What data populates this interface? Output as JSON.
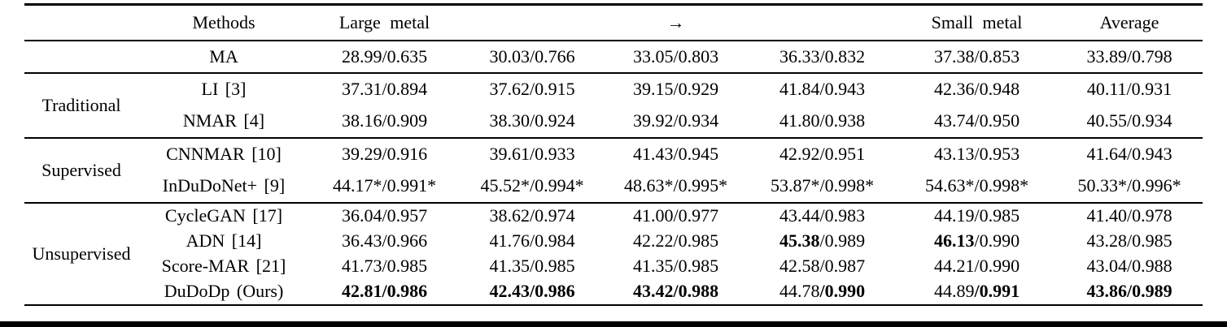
{
  "colors": {
    "text": "#000000",
    "background": "#ffffff",
    "rules": "#000000"
  },
  "table": {
    "header": {
      "group_label": "",
      "methods_label": "Methods",
      "columns": [
        "Large metal",
        "",
        "→",
        "",
        "Small metal",
        "Average"
      ]
    },
    "groups": [
      {
        "label": "",
        "rows": [
          {
            "method": "MA",
            "cells": [
              {
                "psnr": "28.99",
                "ssim": "0.635",
                "psnr_bold": false,
                "ssim_bold": false
              },
              {
                "psnr": "30.03",
                "ssim": "0.766",
                "psnr_bold": false,
                "ssim_bold": false
              },
              {
                "psnr": "33.05",
                "ssim": "0.803",
                "psnr_bold": false,
                "ssim_bold": false
              },
              {
                "psnr": "36.33",
                "ssim": "0.832",
                "psnr_bold": false,
                "ssim_bold": false
              },
              {
                "psnr": "37.38",
                "ssim": "0.853",
                "psnr_bold": false,
                "ssim_bold": false
              },
              {
                "psnr": "33.89",
                "ssim": "0.798",
                "psnr_bold": false,
                "ssim_bold": false
              }
            ]
          }
        ]
      },
      {
        "label": "Traditional",
        "rows": [
          {
            "method": "LI [3]",
            "cells": [
              {
                "psnr": "37.31",
                "ssim": "0.894",
                "psnr_bold": false,
                "ssim_bold": false
              },
              {
                "psnr": "37.62",
                "ssim": "0.915",
                "psnr_bold": false,
                "ssim_bold": false
              },
              {
                "psnr": "39.15",
                "ssim": "0.929",
                "psnr_bold": false,
                "ssim_bold": false
              },
              {
                "psnr": "41.84",
                "ssim": "0.943",
                "psnr_bold": false,
                "ssim_bold": false
              },
              {
                "psnr": "42.36",
                "ssim": "0.948",
                "psnr_bold": false,
                "ssim_bold": false
              },
              {
                "psnr": "40.11",
                "ssim": "0.931",
                "psnr_bold": false,
                "ssim_bold": false
              }
            ]
          },
          {
            "method": "NMAR [4]",
            "cells": [
              {
                "psnr": "38.16",
                "ssim": "0.909",
                "psnr_bold": false,
                "ssim_bold": false
              },
              {
                "psnr": "38.30",
                "ssim": "0.924",
                "psnr_bold": false,
                "ssim_bold": false
              },
              {
                "psnr": "39.92",
                "ssim": "0.934",
                "psnr_bold": false,
                "ssim_bold": false
              },
              {
                "psnr": "41.80",
                "ssim": "0.938",
                "psnr_bold": false,
                "ssim_bold": false
              },
              {
                "psnr": "43.74",
                "ssim": "0.950",
                "psnr_bold": false,
                "ssim_bold": false
              },
              {
                "psnr": "40.55",
                "ssim": "0.934",
                "psnr_bold": false,
                "ssim_bold": false
              }
            ]
          }
        ]
      },
      {
        "label": "Supervised",
        "rows": [
          {
            "method": "CNNMAR [10]",
            "cells": [
              {
                "psnr": "39.29",
                "ssim": "0.916",
                "psnr_bold": false,
                "ssim_bold": false
              },
              {
                "psnr": "39.61",
                "ssim": "0.933",
                "psnr_bold": false,
                "ssim_bold": false
              },
              {
                "psnr": "41.43",
                "ssim": "0.945",
                "psnr_bold": false,
                "ssim_bold": false
              },
              {
                "psnr": "42.92",
                "ssim": "0.951",
                "psnr_bold": false,
                "ssim_bold": false
              },
              {
                "psnr": "43.13",
                "ssim": "0.953",
                "psnr_bold": false,
                "ssim_bold": false
              },
              {
                "psnr": "41.64",
                "ssim": "0.943",
                "psnr_bold": false,
                "ssim_bold": false
              }
            ]
          },
          {
            "method": "InDuDoNet+ [9]",
            "cells": [
              {
                "psnr": "44.17*",
                "ssim": "0.991*",
                "psnr_bold": false,
                "ssim_bold": false
              },
              {
                "psnr": "45.52*",
                "ssim": "0.994*",
                "psnr_bold": false,
                "ssim_bold": false
              },
              {
                "psnr": "48.63*",
                "ssim": "0.995*",
                "psnr_bold": false,
                "ssim_bold": false
              },
              {
                "psnr": "53.87*",
                "ssim": "0.998*",
                "psnr_bold": false,
                "ssim_bold": false
              },
              {
                "psnr": "54.63*",
                "ssim": "0.998*",
                "psnr_bold": false,
                "ssim_bold": false
              },
              {
                "psnr": "50.33*",
                "ssim": "0.996*",
                "psnr_bold": false,
                "ssim_bold": false
              }
            ]
          }
        ]
      },
      {
        "label": "Unsupervised",
        "rows": [
          {
            "method": "CycleGAN [17]",
            "cells": [
              {
                "psnr": "36.04",
                "ssim": "0.957",
                "psnr_bold": false,
                "ssim_bold": false
              },
              {
                "psnr": "38.62",
                "ssim": "0.974",
                "psnr_bold": false,
                "ssim_bold": false
              },
              {
                "psnr": "41.00",
                "ssim": "0.977",
                "psnr_bold": false,
                "ssim_bold": false
              },
              {
                "psnr": "43.44",
                "ssim": "0.983",
                "psnr_bold": false,
                "ssim_bold": false
              },
              {
                "psnr": "44.19",
                "ssim": "0.985",
                "psnr_bold": false,
                "ssim_bold": false
              },
              {
                "psnr": "41.40",
                "ssim": "0.978",
                "psnr_bold": false,
                "ssim_bold": false
              }
            ]
          },
          {
            "method": "ADN [14]",
            "cells": [
              {
                "psnr": "36.43",
                "ssim": "0.966",
                "psnr_bold": false,
                "ssim_bold": false
              },
              {
                "psnr": "41.76",
                "ssim": "0.984",
                "psnr_bold": false,
                "ssim_bold": false
              },
              {
                "psnr": "42.22",
                "ssim": "0.985",
                "psnr_bold": false,
                "ssim_bold": false
              },
              {
                "psnr": "45.38",
                "ssim": "0.989",
                "psnr_bold": true,
                "ssim_bold": false
              },
              {
                "psnr": "46.13",
                "ssim": "0.990",
                "psnr_bold": true,
                "ssim_bold": false
              },
              {
                "psnr": "43.28",
                "ssim": "0.985",
                "psnr_bold": false,
                "ssim_bold": false
              }
            ]
          },
          {
            "method": "Score-MAR [21]",
            "cells": [
              {
                "psnr": "41.73",
                "ssim": "0.985",
                "psnr_bold": false,
                "ssim_bold": false
              },
              {
                "psnr": "41.35",
                "ssim": "0.985",
                "psnr_bold": false,
                "ssim_bold": false
              },
              {
                "psnr": "41.35",
                "ssim": "0.985",
                "psnr_bold": false,
                "ssim_bold": false
              },
              {
                "psnr": "42.58",
                "ssim": "0.987",
                "psnr_bold": false,
                "ssim_bold": false
              },
              {
                "psnr": "44.21",
                "ssim": "0.990",
                "psnr_bold": false,
                "ssim_bold": false
              },
              {
                "psnr": "43.04",
                "ssim": "0.988",
                "psnr_bold": false,
                "ssim_bold": false
              }
            ]
          },
          {
            "method": "DuDoDp (Ours)",
            "cells": [
              {
                "psnr": "42.81",
                "ssim": "0.986",
                "psnr_bold": true,
                "ssim_bold": true
              },
              {
                "psnr": "42.43",
                "ssim": "0.986",
                "psnr_bold": true,
                "ssim_bold": true
              },
              {
                "psnr": "43.42",
                "ssim": "0.988",
                "psnr_bold": true,
                "ssim_bold": true
              },
              {
                "psnr": "44.78",
                "ssim": "0.990",
                "psnr_bold": false,
                "ssim_bold": true
              },
              {
                "psnr": "44.89",
                "ssim": "0.991",
                "psnr_bold": false,
                "ssim_bold": true
              },
              {
                "psnr": "43.86",
                "ssim": "0.989",
                "psnr_bold": true,
                "ssim_bold": true
              }
            ]
          }
        ]
      }
    ]
  }
}
